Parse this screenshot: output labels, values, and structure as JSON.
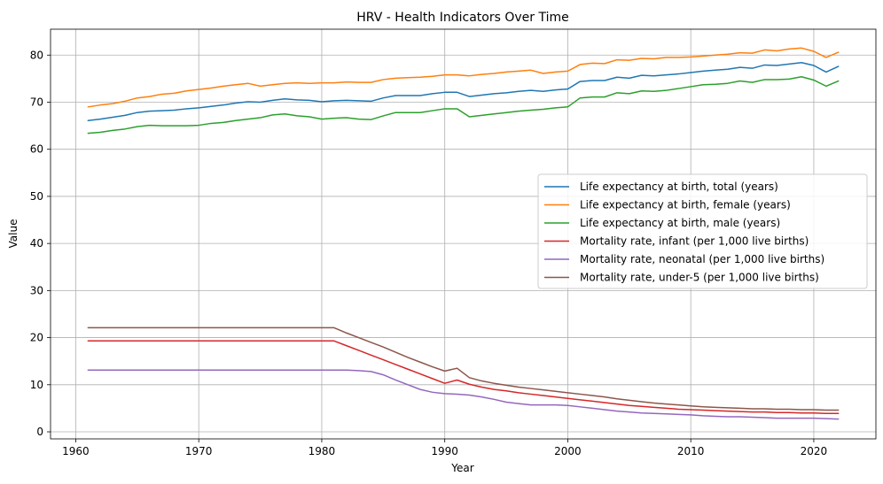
{
  "chart_data": {
    "type": "line",
    "title": "HRV - Health Indicators Over Time",
    "xlabel": "Year",
    "ylabel": "Value",
    "xlim": [
      1957.95,
      2025.05
    ],
    "ylim": [
      -1.5,
      85.5
    ],
    "xticks": [
      1960,
      1970,
      1980,
      1990,
      2000,
      2010,
      2020
    ],
    "yticks": [
      0,
      10,
      20,
      30,
      40,
      50,
      60,
      70,
      80
    ],
    "grid": true,
    "legend_position": "center-right",
    "x": [
      1961,
      1962,
      1963,
      1964,
      1965,
      1966,
      1967,
      1968,
      1969,
      1970,
      1971,
      1972,
      1973,
      1974,
      1975,
      1976,
      1977,
      1978,
      1979,
      1980,
      1981,
      1982,
      1983,
      1984,
      1985,
      1986,
      1987,
      1988,
      1989,
      1990,
      1991,
      1992,
      1993,
      1994,
      1995,
      1996,
      1997,
      1998,
      1999,
      2000,
      2001,
      2002,
      2003,
      2004,
      2005,
      2006,
      2007,
      2008,
      2009,
      2010,
      2011,
      2012,
      2013,
      2014,
      2015,
      2016,
      2017,
      2018,
      2019,
      2020,
      2021,
      2022
    ],
    "series": [
      {
        "name": "Life expectancy at birth, total (years)",
        "color": "#1f77b4",
        "values": [
          66.1,
          66.4,
          66.8,
          67.2,
          67.8,
          68.1,
          68.2,
          68.3,
          68.6,
          68.8,
          69.1,
          69.4,
          69.8,
          70.1,
          70.0,
          70.4,
          70.7,
          70.5,
          70.4,
          70.1,
          70.3,
          70.4,
          70.3,
          70.2,
          70.9,
          71.4,
          71.4,
          71.4,
          71.8,
          72.1,
          72.1,
          71.2,
          71.5,
          71.8,
          72.0,
          72.3,
          72.5,
          72.3,
          72.6,
          72.8,
          74.4,
          74.6,
          74.6,
          75.3,
          75.1,
          75.7,
          75.6,
          75.8,
          76.0,
          76.3,
          76.6,
          76.8,
          77.0,
          77.4,
          77.2,
          77.9,
          77.8,
          78.1,
          78.4,
          77.8,
          76.4,
          77.6
        ]
      },
      {
        "name": "Life expectancy at birth, female (years)",
        "color": "#ff7f0e",
        "values": [
          69.0,
          69.4,
          69.7,
          70.2,
          70.9,
          71.2,
          71.7,
          71.9,
          72.4,
          72.7,
          73.0,
          73.4,
          73.7,
          74.0,
          73.4,
          73.7,
          74.0,
          74.1,
          74.0,
          74.1,
          74.1,
          74.3,
          74.2,
          74.2,
          74.8,
          75.1,
          75.2,
          75.3,
          75.5,
          75.8,
          75.8,
          75.6,
          75.9,
          76.1,
          76.4,
          76.6,
          76.8,
          76.1,
          76.4,
          76.6,
          78.0,
          78.3,
          78.2,
          79.0,
          78.9,
          79.3,
          79.2,
          79.5,
          79.5,
          79.6,
          79.8,
          80.0,
          80.2,
          80.5,
          80.4,
          81.1,
          80.9,
          81.3,
          81.5,
          80.8,
          79.5,
          80.6
        ]
      },
      {
        "name": "Life expectancy at birth, male (years)",
        "color": "#2ca02c",
        "values": [
          63.4,
          63.6,
          64.0,
          64.3,
          64.8,
          65.1,
          65.0,
          65.0,
          65.0,
          65.1,
          65.5,
          65.7,
          66.1,
          66.4,
          66.7,
          67.3,
          67.5,
          67.1,
          66.9,
          66.4,
          66.6,
          66.7,
          66.4,
          66.3,
          67.1,
          67.8,
          67.8,
          67.8,
          68.2,
          68.6,
          68.6,
          66.9,
          67.2,
          67.5,
          67.8,
          68.1,
          68.3,
          68.5,
          68.8,
          69.0,
          70.9,
          71.1,
          71.1,
          72.0,
          71.8,
          72.4,
          72.3,
          72.5,
          72.9,
          73.3,
          73.7,
          73.8,
          74.0,
          74.5,
          74.2,
          74.8,
          74.8,
          74.9,
          75.4,
          74.7,
          73.4,
          74.5
        ]
      },
      {
        "name": "Mortality rate, infant (per 1,000 live births)",
        "color": "#d62728",
        "values": [
          19.3,
          19.3,
          19.3,
          19.3,
          19.3,
          19.3,
          19.3,
          19.3,
          19.3,
          19.3,
          19.3,
          19.3,
          19.3,
          19.3,
          19.3,
          19.3,
          19.3,
          19.3,
          19.3,
          19.3,
          19.3,
          18.3,
          17.3,
          16.3,
          15.3,
          14.3,
          13.3,
          12.3,
          11.3,
          10.3,
          11.0,
          10.1,
          9.5,
          9.0,
          8.7,
          8.3,
          8.0,
          7.7,
          7.4,
          7.1,
          6.8,
          6.5,
          6.2,
          5.9,
          5.6,
          5.4,
          5.2,
          5.0,
          4.8,
          4.7,
          4.6,
          4.5,
          4.4,
          4.3,
          4.2,
          4.2,
          4.1,
          4.1,
          4.0,
          4.0,
          3.9,
          3.9
        ]
      },
      {
        "name": "Mortality rate, neonatal (per 1,000 live births)",
        "color": "#9467bd",
        "values": [
          13.1,
          13.1,
          13.1,
          13.1,
          13.1,
          13.1,
          13.1,
          13.1,
          13.1,
          13.1,
          13.1,
          13.1,
          13.1,
          13.1,
          13.1,
          13.1,
          13.1,
          13.1,
          13.1,
          13.1,
          13.1,
          13.1,
          13.0,
          12.8,
          12.1,
          11.0,
          10.0,
          9.0,
          8.4,
          8.1,
          8.0,
          7.8,
          7.4,
          6.9,
          6.3,
          6.0,
          5.7,
          5.7,
          5.7,
          5.6,
          5.3,
          5.0,
          4.7,
          4.4,
          4.2,
          4.0,
          3.9,
          3.8,
          3.7,
          3.6,
          3.4,
          3.3,
          3.2,
          3.2,
          3.1,
          3.0,
          2.9,
          2.9,
          2.9,
          2.9,
          2.8,
          2.7
        ]
      },
      {
        "name": "Mortality rate, under-5 (per 1,000 live births)",
        "color": "#8c564b",
        "values": [
          22.1,
          22.1,
          22.1,
          22.1,
          22.1,
          22.1,
          22.1,
          22.1,
          22.1,
          22.1,
          22.1,
          22.1,
          22.1,
          22.1,
          22.1,
          22.1,
          22.1,
          22.1,
          22.1,
          22.1,
          22.1,
          21.0,
          20.0,
          19.0,
          18.0,
          16.9,
          15.8,
          14.8,
          13.8,
          12.9,
          13.5,
          11.5,
          10.8,
          10.3,
          9.9,
          9.5,
          9.2,
          8.9,
          8.6,
          8.3,
          8.0,
          7.7,
          7.4,
          7.0,
          6.7,
          6.4,
          6.1,
          5.9,
          5.7,
          5.5,
          5.3,
          5.2,
          5.1,
          5.0,
          4.9,
          4.9,
          4.8,
          4.8,
          4.7,
          4.7,
          4.6,
          4.6
        ]
      }
    ]
  }
}
